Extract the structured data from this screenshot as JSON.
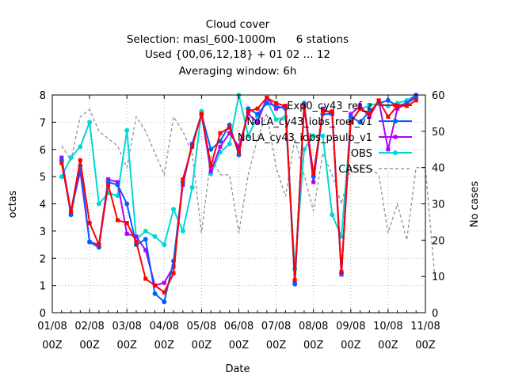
{
  "chart_data": {
    "type": "line",
    "title_lines": [
      "Cloud cover",
      "Selection: masl_600-1000m      6 stations",
      "Used {00,06,12,18} + 01 02 ... 12",
      "Averaging window:  6h"
    ],
    "xlabel": "Date",
    "ylabel": "octas",
    "y2label": "No cases",
    "x_ticks": [
      {
        "x": 0,
        "line1": "01/08",
        "line2": "00Z"
      },
      {
        "x": 1,
        "line1": "02/08",
        "line2": "00Z"
      },
      {
        "x": 2,
        "line1": "03/08",
        "line2": "00Z"
      },
      {
        "x": 3,
        "line1": "04/08",
        "line2": "00Z"
      },
      {
        "x": 4,
        "line1": "05/08",
        "line2": "00Z"
      },
      {
        "x": 5,
        "line1": "06/08",
        "line2": "00Z"
      },
      {
        "x": 6,
        "line1": "07/08",
        "line2": "00Z"
      },
      {
        "x": 7,
        "line1": "08/08",
        "line2": "00Z"
      },
      {
        "x": 8,
        "line1": "09/08",
        "line2": "00Z"
      },
      {
        "x": 9,
        "line1": "10/08",
        "line2": "00Z"
      },
      {
        "x": 10,
        "line1": "11/08",
        "line2": "00Z"
      }
    ],
    "xlim": [
      0,
      10
    ],
    "ylim": [
      0,
      8
    ],
    "yticks": [
      0,
      1,
      2,
      3,
      4,
      5,
      6,
      7,
      8
    ],
    "y2lim": [
      0,
      60
    ],
    "y2ticks": [
      0,
      10,
      20,
      30,
      40,
      50,
      60
    ],
    "grid": true,
    "legend_placement": "top-right",
    "series": [
      {
        "name": "Exp0_cy43_ref_z",
        "color": "#ff0000",
        "marker": "square",
        "axis": "left",
        "x": [
          0.25,
          0.5,
          0.75,
          1.0,
          1.25,
          1.5,
          1.75,
          2.0,
          2.25,
          2.5,
          2.75,
          3.0,
          3.25,
          3.5,
          3.75,
          4.0,
          4.25,
          4.5,
          4.75,
          5.0,
          5.25,
          5.5,
          5.75,
          6.0,
          6.25,
          6.5,
          6.75,
          7.0,
          7.25,
          7.5,
          7.75,
          8.0,
          8.25,
          8.5,
          8.75,
          9.0,
          9.25,
          9.5,
          9.75
        ],
        "y": [
          5.5,
          3.7,
          5.6,
          3.3,
          2.5,
          4.7,
          3.4,
          3.3,
          2.6,
          1.25,
          1.0,
          0.75,
          1.45,
          4.9,
          6.1,
          7.3,
          5.4,
          6.6,
          6.8,
          5.9,
          7.4,
          7.5,
          7.9,
          7.7,
          7.6,
          1.2,
          7.6,
          5.1,
          7.4,
          7.4,
          1.5,
          7.0,
          7.5,
          7.3,
          7.8,
          7.2,
          7.6,
          7.6,
          7.8
        ]
      },
      {
        "name": "NoLA_cy43_iobs_roel_v1",
        "color": "#0060ff",
        "marker": "circle",
        "axis": "left",
        "x": [
          0.25,
          0.5,
          0.75,
          1.0,
          1.25,
          1.5,
          1.75,
          2.0,
          2.25,
          2.5,
          2.75,
          3.0,
          3.25,
          3.5,
          3.75,
          4.0,
          4.25,
          4.5,
          4.75,
          5.0,
          5.25,
          5.5,
          5.75,
          6.0,
          6.25,
          6.5,
          6.75,
          7.0,
          7.25,
          7.5,
          7.75,
          8.0,
          8.25,
          8.5,
          8.75,
          9.0,
          9.25,
          9.5,
          9.75
        ],
        "y": [
          5.6,
          3.6,
          5.4,
          2.6,
          2.4,
          4.8,
          4.7,
          4.0,
          2.5,
          2.7,
          0.7,
          0.4,
          1.9,
          4.8,
          6.2,
          7.3,
          6.0,
          6.3,
          6.9,
          5.8,
          7.5,
          7.3,
          7.7,
          7.6,
          7.5,
          1.05,
          7.7,
          5.0,
          7.3,
          7.3,
          1.45,
          7.2,
          7.0,
          7.4,
          7.7,
          7.8,
          7.6,
          7.7,
          7.9
        ]
      },
      {
        "name": "NoLA_cy43_iobs_paulo_v1",
        "color": "#b000ff",
        "marker": "square",
        "axis": "left",
        "x": [
          0.25,
          0.5,
          0.75,
          1.0,
          1.25,
          1.5,
          1.75,
          2.0,
          2.25,
          2.5,
          2.75,
          3.0,
          3.25,
          3.5,
          3.75,
          4.0,
          4.25,
          4.5,
          4.75,
          5.0,
          5.25,
          5.5,
          5.75,
          6.0,
          6.25,
          6.5,
          6.75,
          7.0,
          7.25,
          7.5,
          7.75,
          8.0,
          8.25,
          8.5,
          8.75,
          9.0,
          9.25,
          9.5,
          9.75
        ],
        "y": [
          5.7,
          3.7,
          5.2,
          2.6,
          2.5,
          4.9,
          4.8,
          2.9,
          2.8,
          2.3,
          1.0,
          1.1,
          1.7,
          4.7,
          6.2,
          7.3,
          5.2,
          6.1,
          6.6,
          6.1,
          7.3,
          7.0,
          7.9,
          7.5,
          7.6,
          1.1,
          7.6,
          4.8,
          7.5,
          7.3,
          1.4,
          7.3,
          7.6,
          7.2,
          7.8,
          6.0,
          7.5,
          7.7,
          8.0
        ]
      },
      {
        "name": "OBS",
        "color": "#00d8d8",
        "marker": "circle",
        "axis": "left",
        "x": [
          0.25,
          0.5,
          0.75,
          1.0,
          1.25,
          1.5,
          1.75,
          2.0,
          2.25,
          2.5,
          2.75,
          3.0,
          3.25,
          3.5,
          3.75,
          4.0,
          4.25,
          4.5,
          4.75,
          5.0,
          5.25,
          5.5,
          5.75,
          6.0,
          6.25,
          6.5,
          6.75,
          7.0,
          7.25,
          7.5,
          7.75,
          8.0,
          8.25,
          8.5,
          8.75,
          9.0,
          9.25,
          9.5,
          9.75
        ],
        "y": [
          5.0,
          5.7,
          6.1,
          7.0,
          4.0,
          4.4,
          4.3,
          6.7,
          2.7,
          3.0,
          2.8,
          2.5,
          3.8,
          3.0,
          4.6,
          7.4,
          5.1,
          5.9,
          6.2,
          8.0,
          6.5,
          7.2,
          7.8,
          7.1,
          7.2,
          1.6,
          6.0,
          6.5,
          6.5,
          3.6,
          2.8,
          7.0,
          7.5,
          7.6,
          7.7,
          7.6,
          7.7,
          7.8,
          8.0
        ]
      },
      {
        "name": "CASES",
        "color": "#999999",
        "dash": true,
        "axis": "right",
        "x": [
          0.25,
          0.5,
          0.75,
          1.0,
          1.25,
          1.5,
          1.75,
          2.0,
          2.25,
          2.5,
          2.75,
          3.0,
          3.25,
          3.5,
          3.75,
          4.0,
          4.25,
          4.5,
          4.75,
          5.0,
          5.25,
          5.5,
          5.75,
          6.0,
          6.25,
          6.5,
          6.75,
          7.0,
          7.25,
          7.5,
          7.75,
          8.0,
          8.25,
          8.5,
          8.75,
          9.0,
          9.25,
          9.5,
          9.75,
          10.0,
          10.25
        ],
        "y": [
          46,
          42,
          54,
          56,
          50,
          48,
          46,
          40,
          54,
          50,
          44,
          38,
          54,
          50,
          44,
          22,
          43,
          38,
          38,
          22,
          38,
          48,
          55,
          40,
          32,
          48,
          38,
          28,
          44,
          38,
          30,
          40,
          40,
          40,
          38,
          22,
          30,
          20,
          40,
          40,
          10
        ]
      }
    ]
  }
}
